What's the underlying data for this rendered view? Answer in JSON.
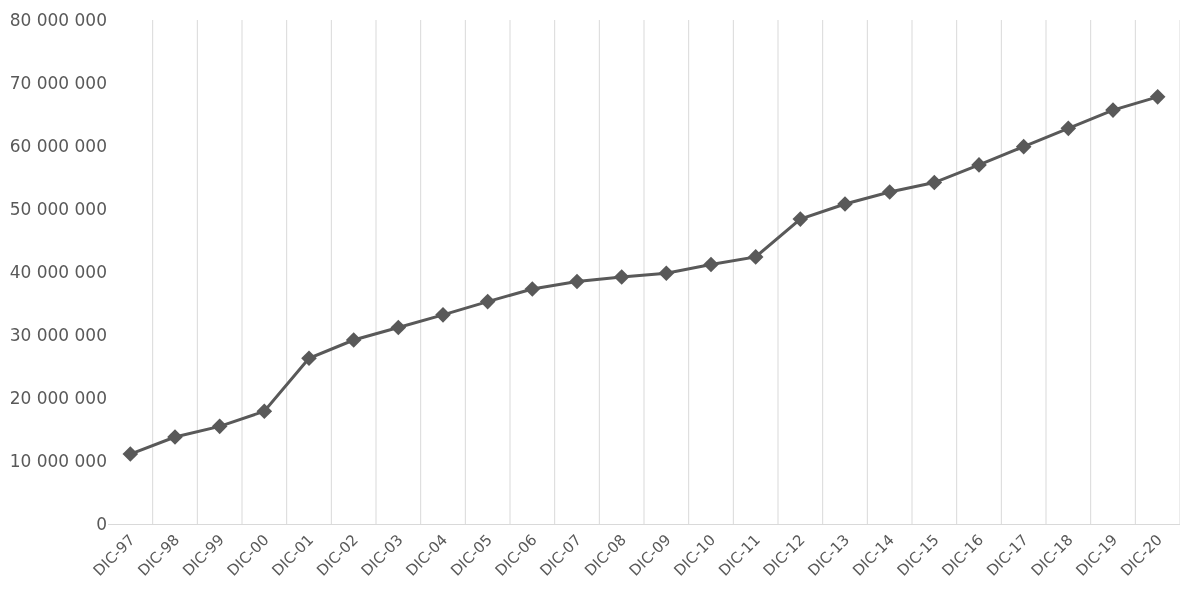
{
  "chart_data": {
    "type": "line",
    "categories": [
      "DIC-97",
      "DIC-98",
      "DIC-99",
      "DIC-00",
      "DIC-01",
      "DIC-02",
      "DIC-03",
      "DIC-04",
      "DIC-05",
      "DIC-06",
      "DIC-07",
      "DIC-08",
      "DIC-09",
      "DIC-10",
      "DIC-11",
      "DIC-12",
      "DIC-13",
      "DIC-14",
      "DIC-15",
      "DIC-16",
      "DIC-17",
      "DIC-18",
      "DIC-19",
      "DIC-20"
    ],
    "series": [
      {
        "color": "#595959",
        "values": [
          11100000,
          13800000,
          15500000,
          17900000,
          26300000,
          29200000,
          31200000,
          33200000,
          35300000,
          37300000,
          38500000,
          39200000,
          39800000,
          41200000,
          42400000,
          48400000,
          50800000,
          52700000,
          54200000,
          57000000,
          59900000,
          62800000,
          65700000,
          67800000
        ]
      }
    ],
    "ylim": [
      0,
      80000000
    ],
    "yticks": [
      0,
      {
        "value": 10000000,
        "label": "10 000 000"
      },
      {
        "value": 20000000,
        "label": "20 000 000"
      },
      {
        "value": 30000000,
        "label": "30 000 000"
      },
      {
        "value": 40000000,
        "label": "40 000 000"
      },
      {
        "value": 50000000,
        "label": "50 000 000"
      },
      {
        "value": 60000000,
        "label": "60 000 000"
      },
      {
        "value": 70000000,
        "label": "70 000 000"
      },
      {
        "value": 80000000,
        "label": "80 000 000"
      }
    ],
    "grid": "x",
    "marker": "diamond",
    "line_style": "solid",
    "legend": false
  }
}
